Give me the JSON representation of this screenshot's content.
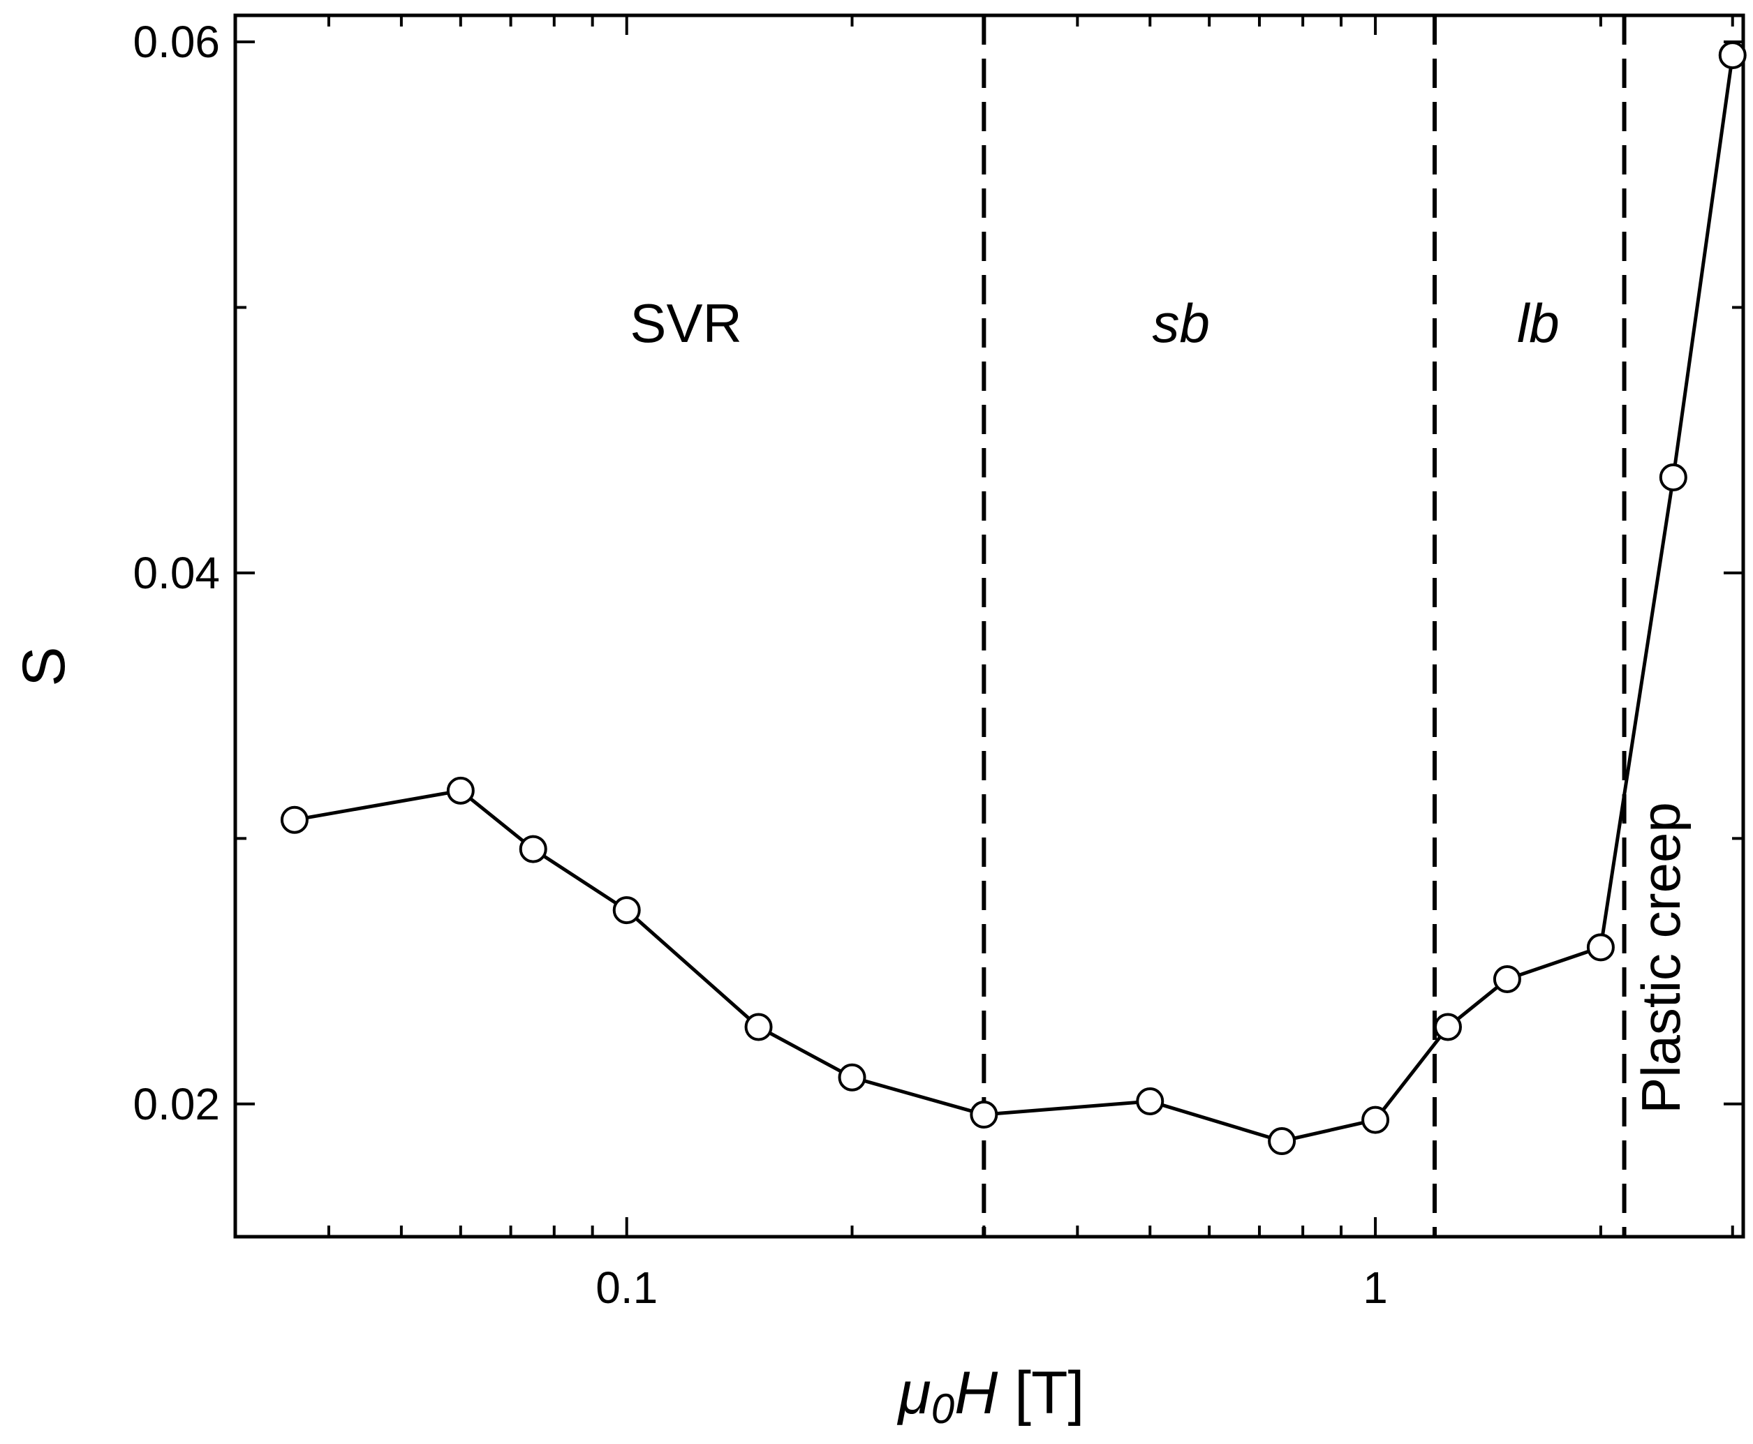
{
  "chart_data": {
    "type": "scatter",
    "xscale": "log",
    "xlabel_symbol": "μ",
    "xlabel_subscript": "0",
    "xlabel_symbol2": "H",
    "xlabel_unit": " [T]",
    "ylabel": "S",
    "xlim": [
      0.03,
      3.1
    ],
    "ylim": [
      0.015,
      0.061
    ],
    "x_tick_labels": [
      {
        "value": 0.1,
        "label": "0.1"
      },
      {
        "value": 1,
        "label": "1"
      }
    ],
    "x_minor_ticks": [
      0.04,
      0.05,
      0.06,
      0.07,
      0.08,
      0.09,
      0.2,
      0.3,
      0.4,
      0.5,
      0.6,
      0.7,
      0.8,
      0.9,
      2,
      3
    ],
    "y_tick_labels": [
      {
        "value": 0.02,
        "label": "0.02"
      },
      {
        "value": 0.04,
        "label": "0.04"
      },
      {
        "value": 0.06,
        "label": "0.06"
      }
    ],
    "y_minor_ticks": [
      0.03,
      0.05
    ],
    "series": [
      {
        "marker": "open-circle",
        "color": "#000000",
        "x": [
          0.036,
          0.06,
          0.075,
          0.1,
          0.15,
          0.2,
          0.3,
          0.5,
          0.75,
          1.0,
          1.25,
          1.5,
          2.0,
          2.5,
          3.0
        ],
        "y": [
          0.0307,
          0.0318,
          0.0296,
          0.0273,
          0.0229,
          0.021,
          0.0196,
          0.0201,
          0.0186,
          0.0194,
          0.0229,
          0.0247,
          0.0259,
          0.0436,
          0.0595
        ]
      }
    ],
    "vertical_dashed_lines_x": [
      0.3,
      1.2,
      2.15
    ],
    "region_labels": [
      {
        "id": "svr",
        "text": "SVR",
        "x": 0.12,
        "y": 0.0487,
        "italic": false,
        "rotate": false
      },
      {
        "id": "sb",
        "text": "sb",
        "x": 0.55,
        "y": 0.0487,
        "italic": true,
        "rotate": false
      },
      {
        "id": "lb",
        "text": "lb",
        "x": 1.65,
        "y": 0.0487,
        "italic": true,
        "rotate": false
      },
      {
        "id": "plastic-creep",
        "text": "Plastic creep",
        "x": 2.55,
        "y": 0.0255,
        "italic": false,
        "rotate": true
      }
    ]
  }
}
